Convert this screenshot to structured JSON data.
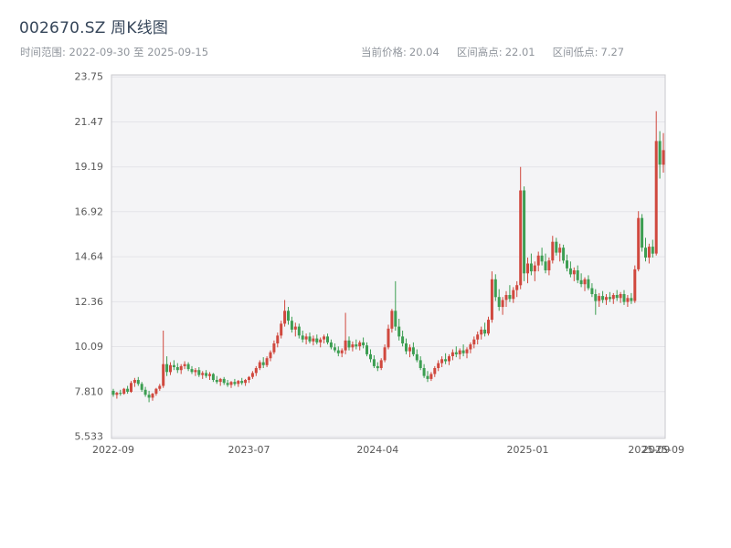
{
  "header": {
    "title": "002670.SZ 周K线图",
    "time_range": {
      "label": "时间范围:",
      "start": "2022-09-30",
      "to": "至",
      "end": "2025-09-15"
    },
    "stats": [
      {
        "label": "当前价格:",
        "value": "20.04"
      },
      {
        "label": "区间高点:",
        "value": "22.01"
      },
      {
        "label": "区间低点:",
        "value": "7.27"
      }
    ]
  },
  "chart_data": {
    "type": "candlestick",
    "title": "002670.SZ 周K线图",
    "xlabel": "",
    "ylabel": "",
    "grid": true,
    "ylim": [
      5.44,
      23.85
    ],
    "up_color": "#d0483e",
    "down_color": "#3c9e52",
    "ytick_values": [
      5.533,
      7.81,
      10.09,
      12.36,
      14.64,
      16.92,
      19.19,
      21.47,
      23.75
    ],
    "ytick_labels": [
      "5.533",
      "7.810",
      "10.09",
      "12.36",
      "14.64",
      "16.92",
      "19.19",
      "21.47",
      "23.75"
    ],
    "xticks": [
      {
        "index": 0,
        "label": "2022-09"
      },
      {
        "index": 38,
        "label": "2023-07"
      },
      {
        "index": 74,
        "label": "2024-04"
      },
      {
        "index": 116,
        "label": "2025-01"
      },
      {
        "index": 150,
        "label": "2025-09"
      },
      {
        "index": 154,
        "label": "2025-09"
      }
    ],
    "ohlc_order": [
      "open",
      "high",
      "low",
      "close"
    ],
    "candles": [
      [
        7.85,
        7.95,
        7.55,
        7.65
      ],
      [
        7.65,
        7.8,
        7.45,
        7.75
      ],
      [
        7.75,
        7.9,
        7.6,
        7.7
      ],
      [
        7.7,
        8.0,
        7.65,
        7.95
      ],
      [
        7.95,
        8.1,
        7.7,
        7.8
      ],
      [
        7.8,
        8.35,
        7.75,
        8.25
      ],
      [
        8.25,
        8.5,
        8.05,
        8.4
      ],
      [
        8.4,
        8.55,
        8.1,
        8.2
      ],
      [
        8.2,
        8.3,
        7.8,
        7.9
      ],
      [
        7.9,
        8.05,
        7.55,
        7.65
      ],
      [
        7.65,
        7.85,
        7.27,
        7.5
      ],
      [
        7.5,
        7.75,
        7.35,
        7.7
      ],
      [
        7.7,
        8.0,
        7.6,
        7.95
      ],
      [
        7.95,
        8.2,
        7.85,
        8.1
      ],
      [
        8.1,
        10.9,
        8.0,
        9.2
      ],
      [
        9.2,
        9.6,
        8.6,
        8.8
      ],
      [
        8.8,
        9.3,
        8.65,
        9.15
      ],
      [
        9.15,
        9.4,
        8.9,
        9.05
      ],
      [
        9.05,
        9.25,
        8.75,
        8.9
      ],
      [
        8.9,
        9.2,
        8.7,
        9.1
      ],
      [
        9.1,
        9.35,
        8.95,
        9.2
      ],
      [
        9.2,
        9.3,
        8.85,
        8.95
      ],
      [
        8.95,
        9.1,
        8.7,
        8.8
      ],
      [
        8.8,
        9.0,
        8.6,
        8.9
      ],
      [
        8.9,
        9.05,
        8.55,
        8.65
      ],
      [
        8.65,
        8.85,
        8.45,
        8.75
      ],
      [
        8.75,
        8.9,
        8.5,
        8.6
      ],
      [
        8.6,
        8.8,
        8.4,
        8.7
      ],
      [
        8.7,
        8.75,
        8.3,
        8.4
      ],
      [
        8.4,
        8.6,
        8.2,
        8.3
      ],
      [
        8.3,
        8.5,
        8.1,
        8.45
      ],
      [
        8.45,
        8.55,
        8.15,
        8.25
      ],
      [
        8.25,
        8.4,
        8.05,
        8.15
      ],
      [
        8.15,
        8.35,
        8.0,
        8.3
      ],
      [
        8.3,
        8.45,
        8.1,
        8.2
      ],
      [
        8.2,
        8.4,
        8.05,
        8.35
      ],
      [
        8.35,
        8.5,
        8.15,
        8.25
      ],
      [
        8.25,
        8.45,
        8.1,
        8.4
      ],
      [
        8.4,
        8.6,
        8.25,
        8.55
      ],
      [
        8.55,
        8.85,
        8.45,
        8.75
      ],
      [
        8.75,
        9.1,
        8.6,
        9.0
      ],
      [
        9.0,
        9.4,
        8.9,
        9.3
      ],
      [
        9.3,
        9.55,
        9.0,
        9.15
      ],
      [
        9.15,
        9.6,
        9.05,
        9.5
      ],
      [
        9.5,
        9.9,
        9.35,
        9.8
      ],
      [
        9.8,
        10.4,
        9.7,
        10.25
      ],
      [
        10.25,
        10.8,
        10.05,
        10.65
      ],
      [
        10.65,
        11.4,
        10.5,
        11.25
      ],
      [
        11.25,
        12.45,
        11.1,
        11.9
      ],
      [
        11.9,
        12.1,
        11.2,
        11.4
      ],
      [
        11.4,
        11.6,
        10.8,
        10.95
      ],
      [
        10.95,
        11.3,
        10.6,
        11.1
      ],
      [
        11.1,
        11.25,
        10.5,
        10.65
      ],
      [
        10.65,
        10.9,
        10.3,
        10.45
      ],
      [
        10.45,
        10.75,
        10.2,
        10.6
      ],
      [
        10.6,
        10.8,
        10.25,
        10.35
      ],
      [
        10.35,
        10.65,
        10.15,
        10.5
      ],
      [
        10.5,
        10.7,
        10.2,
        10.3
      ],
      [
        10.3,
        10.55,
        10.05,
        10.45
      ],
      [
        10.45,
        10.7,
        10.25,
        10.6
      ],
      [
        10.6,
        10.75,
        10.2,
        10.3
      ],
      [
        10.3,
        10.45,
        9.95,
        10.05
      ],
      [
        10.05,
        10.25,
        9.8,
        9.9
      ],
      [
        9.9,
        10.1,
        9.6,
        9.75
      ],
      [
        9.75,
        10.0,
        9.55,
        9.9
      ],
      [
        9.9,
        11.8,
        9.7,
        10.4
      ],
      [
        10.4,
        10.6,
        9.9,
        10.05
      ],
      [
        10.05,
        10.35,
        9.85,
        10.2
      ],
      [
        10.2,
        10.45,
        9.95,
        10.1
      ],
      [
        10.1,
        10.4,
        9.9,
        10.3
      ],
      [
        10.3,
        10.55,
        10.0,
        10.15
      ],
      [
        10.15,
        10.3,
        9.6,
        9.7
      ],
      [
        9.7,
        9.95,
        9.3,
        9.45
      ],
      [
        9.45,
        9.65,
        9.0,
        9.1
      ],
      [
        9.1,
        9.3,
        8.85,
        9.0
      ],
      [
        9.0,
        9.5,
        8.9,
        9.4
      ],
      [
        9.4,
        10.2,
        9.3,
        10.05
      ],
      [
        10.05,
        11.2,
        9.95,
        11.0
      ],
      [
        11.0,
        12.0,
        10.8,
        11.9
      ],
      [
        11.9,
        13.4,
        10.9,
        11.1
      ],
      [
        11.1,
        11.5,
        10.4,
        10.6
      ],
      [
        10.6,
        10.9,
        10.1,
        10.25
      ],
      [
        10.25,
        10.5,
        9.7,
        9.85
      ],
      [
        9.85,
        10.2,
        9.55,
        10.05
      ],
      [
        10.05,
        10.3,
        9.6,
        9.7
      ],
      [
        9.7,
        9.95,
        9.3,
        9.4
      ],
      [
        9.4,
        9.6,
        8.9,
        9.0
      ],
      [
        9.0,
        9.2,
        8.5,
        8.6
      ],
      [
        8.6,
        8.85,
        8.3,
        8.45
      ],
      [
        8.45,
        8.8,
        8.35,
        8.7
      ],
      [
        8.7,
        9.1,
        8.55,
        9.0
      ],
      [
        9.0,
        9.4,
        8.85,
        9.25
      ],
      [
        9.25,
        9.6,
        9.05,
        9.45
      ],
      [
        9.45,
        9.75,
        9.2,
        9.35
      ],
      [
        9.35,
        9.7,
        9.15,
        9.6
      ],
      [
        9.6,
        9.95,
        9.4,
        9.8
      ],
      [
        9.8,
        10.1,
        9.55,
        9.7
      ],
      [
        9.7,
        10.0,
        9.45,
        9.9
      ],
      [
        9.9,
        10.2,
        9.6,
        9.75
      ],
      [
        9.75,
        10.05,
        9.5,
        9.95
      ],
      [
        9.95,
        10.3,
        9.75,
        10.2
      ],
      [
        10.2,
        10.6,
        10.0,
        10.45
      ],
      [
        10.45,
        10.85,
        10.2,
        10.7
      ],
      [
        10.7,
        11.1,
        10.45,
        10.95
      ],
      [
        10.95,
        11.3,
        10.6,
        10.75
      ],
      [
        10.75,
        11.6,
        10.65,
        11.45
      ],
      [
        11.45,
        13.9,
        11.3,
        13.5
      ],
      [
        13.5,
        13.75,
        12.4,
        12.6
      ],
      [
        12.6,
        13.0,
        11.9,
        12.1
      ],
      [
        12.1,
        12.6,
        11.7,
        12.45
      ],
      [
        12.45,
        12.9,
        12.1,
        12.7
      ],
      [
        12.7,
        13.2,
        12.35,
        12.5
      ],
      [
        12.5,
        13.1,
        12.3,
        12.95
      ],
      [
        12.95,
        13.4,
        12.6,
        13.2
      ],
      [
        13.2,
        19.19,
        13.0,
        18.0
      ],
      [
        18.0,
        18.2,
        13.4,
        13.8
      ],
      [
        13.8,
        14.6,
        13.3,
        14.3
      ],
      [
        14.3,
        14.8,
        13.7,
        13.9
      ],
      [
        13.9,
        14.4,
        13.4,
        14.2
      ],
      [
        14.2,
        14.9,
        13.9,
        14.7
      ],
      [
        14.7,
        15.1,
        14.2,
        14.4
      ],
      [
        14.4,
        14.8,
        13.8,
        13.95
      ],
      [
        13.95,
        14.6,
        13.7,
        14.45
      ],
      [
        14.45,
        15.7,
        14.3,
        15.4
      ],
      [
        15.4,
        15.6,
        14.7,
        14.85
      ],
      [
        14.85,
        15.3,
        14.4,
        15.1
      ],
      [
        15.1,
        15.25,
        14.3,
        14.45
      ],
      [
        14.45,
        14.75,
        13.9,
        14.05
      ],
      [
        14.05,
        14.4,
        13.6,
        13.75
      ],
      [
        13.75,
        14.1,
        13.4,
        13.95
      ],
      [
        13.95,
        14.2,
        13.3,
        13.45
      ],
      [
        13.45,
        13.8,
        13.1,
        13.25
      ],
      [
        13.25,
        13.6,
        12.9,
        13.5
      ],
      [
        13.5,
        13.7,
        12.95,
        13.05
      ],
      [
        13.05,
        13.3,
        12.6,
        12.75
      ],
      [
        12.75,
        13.0,
        11.7,
        12.4
      ],
      [
        12.4,
        12.8,
        12.1,
        12.65
      ],
      [
        12.65,
        12.9,
        12.3,
        12.45
      ],
      [
        12.45,
        12.75,
        12.2,
        12.6
      ],
      [
        12.6,
        12.85,
        12.35,
        12.5
      ],
      [
        12.5,
        12.8,
        12.25,
        12.7
      ],
      [
        12.7,
        12.95,
        12.4,
        12.55
      ],
      [
        12.55,
        12.85,
        12.3,
        12.75
      ],
      [
        12.75,
        12.95,
        12.2,
        12.35
      ],
      [
        12.35,
        12.7,
        12.1,
        12.55
      ],
      [
        12.55,
        12.8,
        12.25,
        12.4
      ],
      [
        12.4,
        14.2,
        12.3,
        14.0
      ],
      [
        14.0,
        16.95,
        13.9,
        16.6
      ],
      [
        16.6,
        16.8,
        14.9,
        15.1
      ],
      [
        15.1,
        15.6,
        14.4,
        14.6
      ],
      [
        14.6,
        15.3,
        14.3,
        15.15
      ],
      [
        15.15,
        15.5,
        14.6,
        14.8
      ],
      [
        14.8,
        22.01,
        14.7,
        20.5
      ],
      [
        20.5,
        21.0,
        18.6,
        19.3
      ],
      [
        19.3,
        20.9,
        18.9,
        20.04
      ]
    ]
  }
}
